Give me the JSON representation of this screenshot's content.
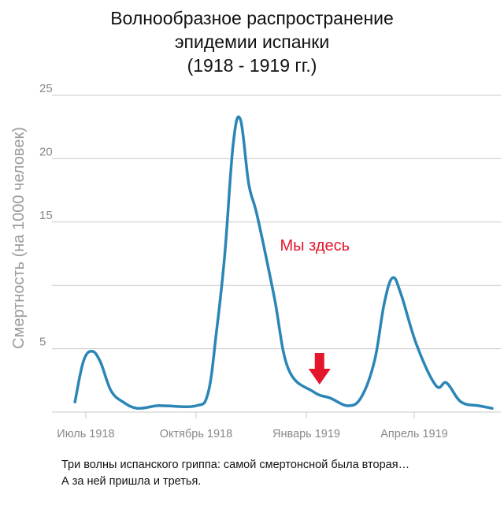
{
  "title_lines": [
    "Волнообразное распространение",
    "эпидемии испанки",
    "(1918 - 1919 гг.)"
  ],
  "annotation": {
    "text": "Мы здесь",
    "color": "#e3162b",
    "arrow_x": "1919-01-12",
    "arrow_icon": "down-arrow-icon"
  },
  "caption": {
    "line1": "Три волны испанского гриппа: самой смертонсной была вторая…",
    "line2": "А за ней пришла и третья."
  },
  "colors": {
    "line": "#2b86b6",
    "grid": "#c9c9c9",
    "axis_text": "#888888",
    "ylabel": "#9a9a9a"
  },
  "chart_data": {
    "type": "line",
    "ylabel": "Смертность (на 1000 человек)",
    "ylim": [
      0,
      25
    ],
    "yticks": [
      5,
      15,
      20,
      25
    ],
    "grid": true,
    "x_tick_labels": [
      {
        "date": "1918-07-01",
        "label": "Июль 1918"
      },
      {
        "date": "1918-10-01",
        "label": "Октябрь 1918"
      },
      {
        "date": "1919-01-01",
        "label": "Январь 1919"
      },
      {
        "date": "1919-04-01",
        "label": "Апрель 1919"
      }
    ],
    "xlim": [
      "1918-06-12",
      "1919-06-07"
    ],
    "series": [
      {
        "x": [
          "1918-06-22",
          "1918-06-29",
          "1918-07-06",
          "1918-07-13",
          "1918-07-22",
          "1918-08-01",
          "1918-08-13",
          "1918-08-29",
          "1918-09-05",
          "1918-10-01",
          "1918-10-11",
          "1918-10-18",
          "1918-10-25",
          "1918-11-01",
          "1918-11-07",
          "1918-11-14",
          "1918-11-21",
          "1918-12-05",
          "1918-12-17",
          "1919-01-07",
          "1919-01-21",
          "1919-02-05",
          "1919-02-16",
          "1919-02-27",
          "1919-03-07",
          "1919-03-14",
          "1919-03-21",
          "1919-04-03",
          "1919-04-19",
          "1919-04-28",
          "1919-05-10",
          "1919-05-25",
          "1919-06-05"
        ],
        "y": [
          0.8,
          4.0,
          4.8,
          4.0,
          1.7,
          0.8,
          0.3,
          0.5,
          0.5,
          0.5,
          1.5,
          6.3,
          12.5,
          21.2,
          23.1,
          18.0,
          15.5,
          9.2,
          3.4,
          1.6,
          1.1,
          0.5,
          1.2,
          4.1,
          8.6,
          10.6,
          9.3,
          5.3,
          2.1,
          2.3,
          0.8,
          0.5,
          0.3
        ]
      }
    ]
  }
}
